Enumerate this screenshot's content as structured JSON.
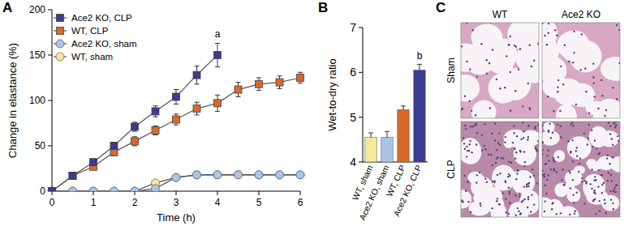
{
  "chart_data": [
    {
      "type": "line",
      "title": "A",
      "x_label": "Time (h)",
      "y_label": "Change in elastance (%)",
      "x": [
        0,
        0.5,
        1,
        1.5,
        2,
        2.5,
        3,
        3.5,
        4,
        4.5,
        5,
        5.5,
        6
      ],
      "xlim": [
        0,
        6
      ],
      "xticks": [
        0,
        1,
        2,
        3,
        4,
        5,
        6
      ],
      "ylim": [
        0,
        200
      ],
      "yticks": [
        0,
        50,
        100,
        150,
        200
      ],
      "grid": false,
      "legend": "top-left",
      "series": [
        {
          "name": "Ace2 KO, CLP",
          "color": "#3b3b8f",
          "marker": "square",
          "values": [
            0,
            17,
            32,
            50,
            71,
            88,
            104,
            128,
            150,
            null,
            null,
            null,
            null
          ],
          "errors": [
            0,
            2,
            3,
            4,
            5,
            6,
            8,
            10,
            13,
            null,
            null,
            null,
            null
          ]
        },
        {
          "name": "WT, CLP",
          "color": "#d8692b",
          "marker": "square",
          "values": [
            0,
            17,
            27,
            43,
            55,
            67,
            79,
            91,
            97,
            112,
            118,
            120,
            125
          ],
          "errors": [
            0,
            2,
            3,
            4,
            5,
            5,
            6,
            7,
            9,
            8,
            7,
            7,
            6
          ]
        },
        {
          "name": "Ace2 KO, sham",
          "color": "#a9c6e6",
          "marker": "circle",
          "values": [
            0,
            0,
            0,
            0,
            0,
            3,
            15,
            18,
            18,
            18,
            18,
            18,
            18
          ],
          "errors": [
            0,
            1,
            1,
            1,
            1,
            2,
            2,
            3,
            3,
            3,
            3,
            3,
            3
          ]
        },
        {
          "name": "WT, sham",
          "color": "#f2ea98",
          "marker": "circle",
          "values": [
            0,
            0,
            0,
            0,
            0,
            9,
            15,
            18,
            18,
            18,
            18,
            18,
            18
          ],
          "errors": [
            0,
            1,
            1,
            1,
            1,
            2,
            2,
            3,
            3,
            3,
            3,
            3,
            3
          ]
        }
      ],
      "annotations": [
        {
          "text": "a",
          "x": 4,
          "y": 170
        }
      ]
    },
    {
      "type": "bar",
      "title": "B",
      "y_label": "Wet-to-dry ratio",
      "categories": [
        "WT, sham",
        "Ace2 KO, sham",
        "WT, CLP",
        "Ace2 KO, CLP"
      ],
      "values": [
        4.55,
        4.55,
        5.17,
        6.05
      ],
      "errors": [
        0.1,
        0.13,
        0.08,
        0.13
      ],
      "colors": [
        "#f2ea98",
        "#a9c6e6",
        "#d8692b",
        "#3b3b8f"
      ],
      "ylim": [
        4,
        7
      ],
      "yticks": [
        4,
        5,
        6,
        7
      ],
      "grid": false,
      "annotations": [
        {
          "text": "b",
          "category": "Ace2 KO, CLP",
          "y": 6.3
        }
      ]
    }
  ],
  "image_panel": {
    "title": "C",
    "columns": [
      "WT",
      "Ace2 KO"
    ],
    "rows": [
      "Sham",
      "CLP"
    ]
  }
}
